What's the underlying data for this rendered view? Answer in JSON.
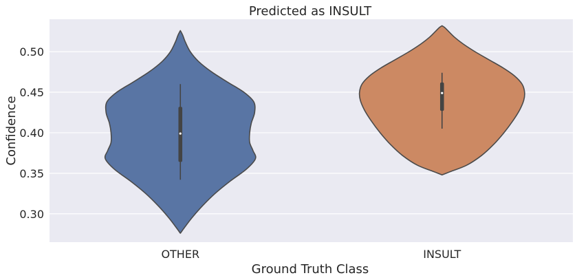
{
  "chart_data": {
    "type": "violin",
    "title": "Predicted as INSULT",
    "xlabel": "Ground Truth Class",
    "ylabel": "Confidence",
    "ylim": [
      0.265,
      0.54
    ],
    "yticks": [
      "0.30",
      "0.35",
      "0.40",
      "0.45",
      "0.50"
    ],
    "ytick_values": [
      0.3,
      0.35,
      0.4,
      0.45,
      0.5
    ],
    "grid": true,
    "categories": [
      "OTHER",
      "INSULT"
    ],
    "series": [
      {
        "category": "OTHER",
        "color": "#5975a4",
        "min": 0.276,
        "max": 0.526,
        "q1": 0.364,
        "median": 0.399,
        "q3": 0.432,
        "whisker_low": 0.342,
        "whisker_high": 0.46,
        "density_profile": [
          [
            0.276,
            0.0
          ],
          [
            0.283,
            0.05
          ],
          [
            0.295,
            0.14
          ],
          [
            0.31,
            0.27
          ],
          [
            0.325,
            0.42
          ],
          [
            0.34,
            0.6
          ],
          [
            0.355,
            0.8
          ],
          [
            0.368,
            0.91
          ],
          [
            0.378,
            0.88
          ],
          [
            0.388,
            0.84
          ],
          [
            0.4,
            0.84
          ],
          [
            0.412,
            0.86
          ],
          [
            0.425,
            0.9
          ],
          [
            0.438,
            0.89
          ],
          [
            0.45,
            0.77
          ],
          [
            0.462,
            0.58
          ],
          [
            0.475,
            0.38
          ],
          [
            0.488,
            0.22
          ],
          [
            0.5,
            0.12
          ],
          [
            0.512,
            0.06
          ],
          [
            0.52,
            0.03
          ],
          [
            0.526,
            0.0
          ]
        ]
      },
      {
        "category": "INSULT",
        "color": "#cc8963",
        "min": 0.348,
        "max": 0.532,
        "q1": 0.427,
        "median": 0.449,
        "q3": 0.462,
        "whisker_low": 0.405,
        "whisker_high": 0.474,
        "density_profile": [
          [
            0.348,
            0.0
          ],
          [
            0.352,
            0.1
          ],
          [
            0.36,
            0.3
          ],
          [
            0.372,
            0.48
          ],
          [
            0.385,
            0.62
          ],
          [
            0.4,
            0.75
          ],
          [
            0.415,
            0.86
          ],
          [
            0.428,
            0.94
          ],
          [
            0.44,
            0.99
          ],
          [
            0.45,
            1.0
          ],
          [
            0.46,
            0.97
          ],
          [
            0.47,
            0.88
          ],
          [
            0.48,
            0.74
          ],
          [
            0.49,
            0.57
          ],
          [
            0.5,
            0.4
          ],
          [
            0.51,
            0.25
          ],
          [
            0.518,
            0.15
          ],
          [
            0.525,
            0.08
          ],
          [
            0.53,
            0.03
          ],
          [
            0.532,
            0.0
          ]
        ]
      }
    ]
  }
}
